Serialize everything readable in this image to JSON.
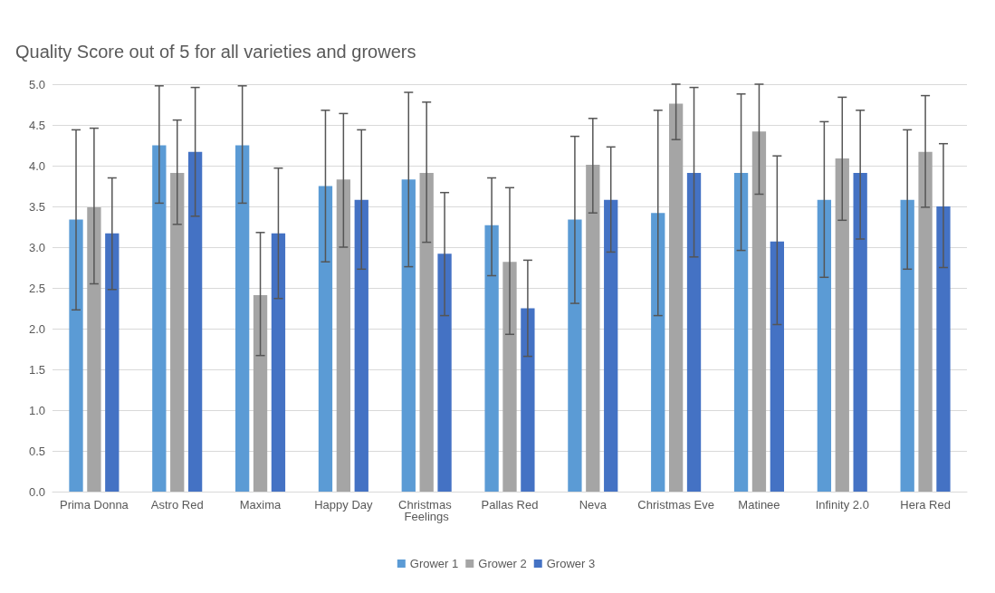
{
  "chart_data": {
    "type": "bar",
    "title": "Quality Score out of 5 for all varieties and growers",
    "categories": [
      "Prima Donna",
      "Astro Red",
      "Maxima",
      "Happy Day",
      "Christmas Feelings",
      "Pallas Red",
      "Neva",
      "Christmas Eve",
      "Matinee",
      "Infinity 2.0",
      "Hera Red"
    ],
    "series": [
      {
        "name": "Grower 1",
        "color": "#5b9bd5",
        "values": [
          3.34,
          4.25,
          4.25,
          3.75,
          3.83,
          3.27,
          3.34,
          3.42,
          3.91,
          3.58,
          3.58
        ],
        "errors": [
          [
            2.23,
            4.44
          ],
          [
            3.54,
            4.98
          ],
          [
            3.54,
            4.98
          ],
          [
            2.82,
            4.68
          ],
          [
            2.76,
            4.9
          ],
          [
            2.65,
            3.85
          ],
          [
            2.31,
            4.36
          ],
          [
            2.16,
            4.68
          ],
          [
            2.96,
            4.88
          ],
          [
            2.63,
            4.54
          ],
          [
            2.73,
            4.44
          ]
        ]
      },
      {
        "name": "Grower 2",
        "color": "#a5a5a5",
        "values": [
          3.49,
          3.91,
          2.41,
          3.83,
          3.91,
          2.82,
          4.01,
          4.76,
          4.42,
          4.09,
          4.17
        ],
        "errors": [
          [
            2.55,
            4.46
          ],
          [
            3.28,
            4.56
          ],
          [
            1.67,
            3.18
          ],
          [
            3.0,
            4.64
          ],
          [
            3.06,
            4.78
          ],
          [
            1.93,
            3.73
          ],
          [
            3.42,
            4.58
          ],
          [
            4.32,
            5.0
          ],
          [
            3.65,
            5.0
          ],
          [
            3.33,
            4.84
          ],
          [
            3.49,
            4.86
          ]
        ]
      },
      {
        "name": "Grower 3",
        "color": "#4472c4",
        "values": [
          3.17,
          4.17,
          3.17,
          3.58,
          2.92,
          2.25,
          3.58,
          3.91,
          3.07,
          3.91,
          3.5
        ],
        "errors": [
          [
            2.48,
            3.85
          ],
          [
            3.38,
            4.96
          ],
          [
            2.37,
            3.97
          ],
          [
            2.73,
            4.44
          ],
          [
            2.16,
            3.67
          ],
          [
            1.66,
            2.84
          ],
          [
            2.94,
            4.23
          ],
          [
            2.88,
            4.96
          ],
          [
            2.05,
            4.12
          ],
          [
            3.1,
            4.68
          ],
          [
            2.75,
            4.27
          ]
        ]
      }
    ],
    "ylim": [
      0,
      5
    ],
    "yticks": [
      {
        "value": 0,
        "label": "0.0"
      },
      {
        "value": 0.5,
        "label": "0.5"
      },
      {
        "value": 1,
        "label": "1.0"
      },
      {
        "value": 1.5,
        "label": "1.5"
      },
      {
        "value": 2,
        "label": "2.0"
      },
      {
        "value": 2.5,
        "label": "2.5"
      },
      {
        "value": 3,
        "label": "3.0"
      },
      {
        "value": 3.5,
        "label": "3.5"
      },
      {
        "value": 4,
        "label": "4.0"
      },
      {
        "value": 4.5,
        "label": "4.5"
      },
      {
        "value": 5,
        "label": "5.0"
      }
    ],
    "grid": "y",
    "legend": "bottom"
  }
}
